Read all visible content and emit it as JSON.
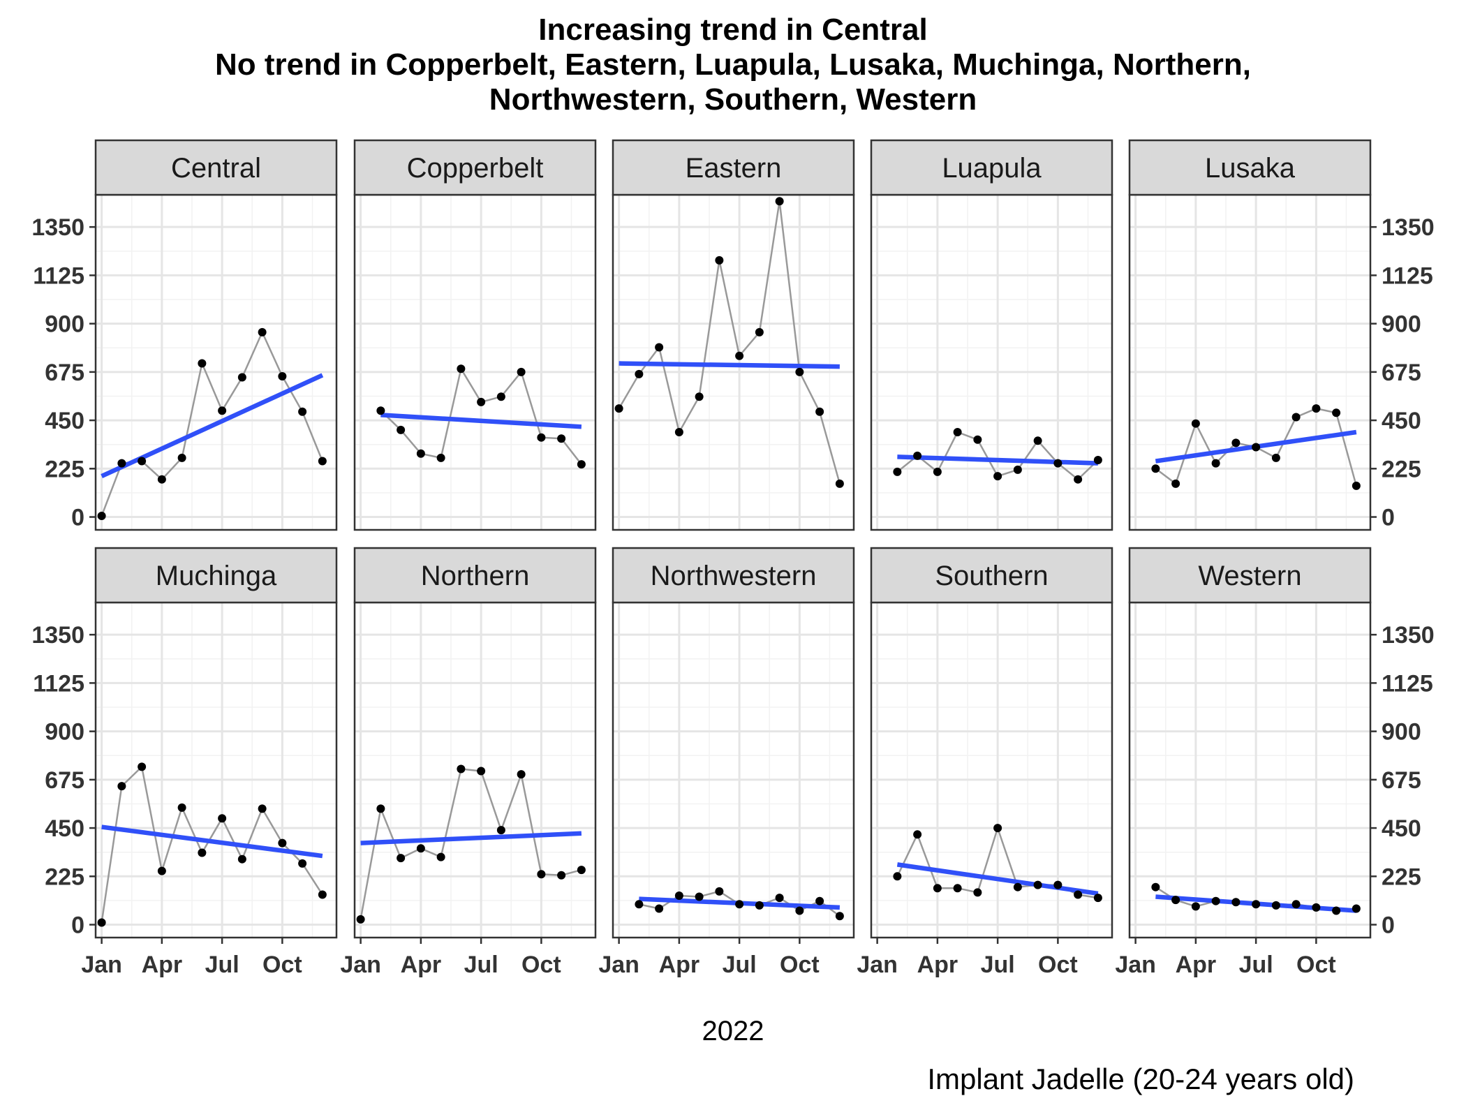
{
  "chart_data": {
    "type": "line",
    "title": [
      "Increasing trend in Central",
      "No trend in Copperbelt, Eastern, Luapula, Lusaka, Muchinga, Northern,",
      "Northwestern, Southern, Western"
    ],
    "xlabel": "2022",
    "caption": "Implant Jadelle (20-24 years old)",
    "ylim": [
      -60,
      1500
    ],
    "yticks": [
      0,
      225,
      450,
      675,
      900,
      1125,
      1350
    ],
    "ytick_labels": [
      "0",
      "225",
      "450",
      "675",
      "900",
      "1125",
      "1350"
    ],
    "xlim": [
      -0.3,
      11.7
    ],
    "xticks": [
      0,
      3,
      6,
      9
    ],
    "xtick_labels": [
      "Jan",
      "Apr",
      "Jul",
      "Oct"
    ],
    "x_unit": "month index of 2022 (0 = Jan)",
    "grid": true,
    "colors": {
      "series": "#999999",
      "points": "#000000",
      "trend": "#3050F8",
      "strip": "#D9D9D9",
      "grid": "#E5E5E5"
    },
    "panels": [
      {
        "name": "Central",
        "x": [
          0,
          1,
          2,
          3,
          4,
          5,
          6,
          7,
          8,
          9,
          10,
          11
        ],
        "values": [
          5,
          250,
          260,
          175,
          275,
          715,
          495,
          650,
          860,
          655,
          490,
          260
        ],
        "trend": {
          "x": [
            0,
            11
          ],
          "y": [
            190,
            660
          ]
        }
      },
      {
        "name": "Copperbelt",
        "x": [
          1,
          2,
          3,
          4,
          5,
          6,
          7,
          8,
          9,
          10,
          11
        ],
        "values": [
          495,
          405,
          295,
          275,
          690,
          535,
          560,
          675,
          370,
          365,
          245
        ],
        "trend": {
          "x": [
            1,
            11
          ],
          "y": [
            475,
            420
          ]
        }
      },
      {
        "name": "Eastern",
        "x": [
          0,
          1,
          2,
          3,
          4,
          5,
          6,
          7,
          8,
          9,
          10,
          11
        ],
        "values": [
          505,
          665,
          790,
          395,
          560,
          1195,
          750,
          860,
          1470,
          675,
          490,
          155
        ],
        "trend": {
          "x": [
            0,
            11
          ],
          "y": [
            715,
            700
          ]
        }
      },
      {
        "name": "Luapula",
        "x": [
          1,
          2,
          3,
          4,
          5,
          6,
          7,
          8,
          9,
          10,
          11
        ],
        "values": [
          210,
          285,
          210,
          395,
          360,
          190,
          220,
          355,
          250,
          175,
          265
        ],
        "trend": {
          "x": [
            1,
            11
          ],
          "y": [
            280,
            250
          ]
        }
      },
      {
        "name": "Lusaka",
        "x": [
          1,
          2,
          3,
          4,
          5,
          6,
          7,
          8,
          9,
          10,
          11
        ],
        "values": [
          225,
          155,
          435,
          250,
          345,
          325,
          275,
          465,
          505,
          485,
          145
        ],
        "trend": {
          "x": [
            1,
            11
          ],
          "y": [
            260,
            395
          ]
        }
      },
      {
        "name": "Muchinga",
        "x": [
          0,
          1,
          2,
          3,
          4,
          5,
          6,
          7,
          8,
          9,
          10,
          11
        ],
        "values": [
          10,
          645,
          735,
          250,
          545,
          335,
          495,
          305,
          540,
          380,
          285,
          140
        ],
        "trend": {
          "x": [
            0,
            11
          ],
          "y": [
            455,
            320
          ]
        }
      },
      {
        "name": "Northern",
        "x": [
          0,
          1,
          2,
          3,
          4,
          5,
          6,
          7,
          8,
          9,
          10,
          11
        ],
        "values": [
          25,
          540,
          310,
          355,
          315,
          725,
          715,
          440,
          700,
          235,
          230,
          255
        ],
        "trend": {
          "x": [
            0,
            11
          ],
          "y": [
            380,
            425
          ]
        }
      },
      {
        "name": "Northwestern",
        "x": [
          1,
          2,
          3,
          4,
          5,
          6,
          7,
          8,
          9,
          10,
          11
        ],
        "values": [
          95,
          75,
          135,
          130,
          155,
          95,
          90,
          125,
          65,
          110,
          40
        ],
        "trend": {
          "x": [
            1,
            11
          ],
          "y": [
            120,
            80
          ]
        }
      },
      {
        "name": "Southern",
        "x": [
          1,
          2,
          3,
          4,
          5,
          6,
          7,
          8,
          9,
          10,
          11
        ],
        "values": [
          225,
          420,
          170,
          170,
          150,
          450,
          175,
          185,
          185,
          140,
          125
        ],
        "trend": {
          "x": [
            1,
            11
          ],
          "y": [
            280,
            145
          ]
        }
      },
      {
        "name": "Western",
        "x": [
          1,
          2,
          3,
          4,
          5,
          6,
          7,
          8,
          9,
          10,
          11
        ],
        "values": [
          175,
          115,
          85,
          110,
          105,
          95,
          90,
          95,
          80,
          65,
          75
        ],
        "trend": {
          "x": [
            1,
            11
          ],
          "y": [
            130,
            65
          ]
        }
      }
    ]
  }
}
